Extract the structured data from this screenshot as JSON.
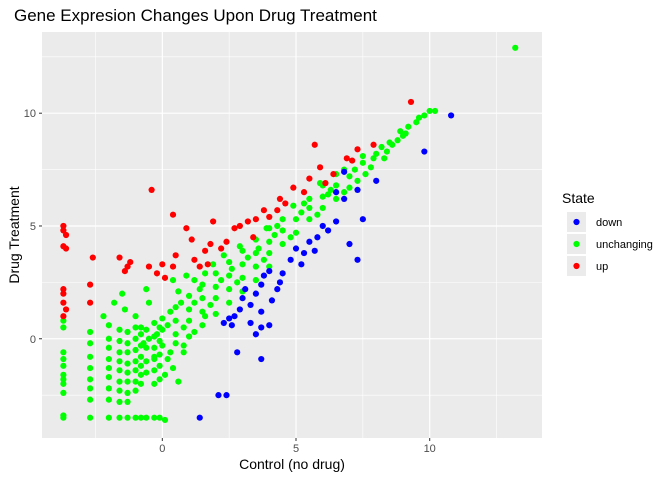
{
  "chart_data": {
    "type": "scatter",
    "title": "Gene Expresion Changes Upon Drug Treatment",
    "xlabel": "Control (no drug)",
    "ylabel": "Drug Treatment",
    "xlim": [
      -4.5,
      14.2
    ],
    "ylim": [
      -4.4,
      13.6
    ],
    "x_ticks": [
      0,
      5,
      10
    ],
    "y_ticks": [
      0,
      5,
      10
    ],
    "grid": true,
    "legend": {
      "title": "State",
      "placement": "right",
      "entries": [
        {
          "label": "down",
          "color": "#0000ff"
        },
        {
          "label": "unchanging",
          "color": "#00ff00"
        },
        {
          "label": "up",
          "color": "#ff0000"
        }
      ]
    },
    "series": [
      {
        "name": "unchanging",
        "color": "#00ff00",
        "points": [
          [
            13.2,
            12.9
          ],
          [
            10.2,
            10.1
          ],
          [
            10.0,
            10.1
          ],
          [
            9.8,
            9.9
          ],
          [
            9.5,
            9.6
          ],
          [
            9.2,
            9.4
          ],
          [
            9.0,
            9.0
          ],
          [
            8.5,
            8.7
          ],
          [
            8.0,
            8.2
          ],
          [
            7.5,
            7.8
          ],
          [
            7.0,
            7.2
          ],
          [
            6.5,
            6.8
          ],
          [
            6.0,
            6.3
          ],
          [
            5.5,
            5.8
          ],
          [
            5.0,
            5.3
          ],
          [
            4.5,
            4.8
          ],
          [
            4.0,
            4.3
          ],
          [
            3.5,
            3.8
          ],
          [
            3.0,
            3.3
          ],
          [
            2.5,
            2.8
          ],
          [
            2.0,
            2.3
          ],
          [
            1.5,
            1.8
          ],
          [
            1.0,
            1.3
          ],
          [
            0.5,
            0.8
          ],
          [
            0.0,
            0.4
          ],
          [
            8.2,
            8.5
          ],
          [
            7.8,
            7.6
          ],
          [
            7.2,
            7.5
          ],
          [
            6.8,
            6.5
          ],
          [
            6.2,
            6.4
          ],
          [
            5.8,
            5.5
          ],
          [
            5.2,
            5.6
          ],
          [
            4.8,
            4.5
          ],
          [
            4.2,
            4.6
          ],
          [
            3.8,
            3.5
          ],
          [
            3.2,
            3.6
          ],
          [
            2.8,
            2.5
          ],
          [
            2.2,
            2.6
          ],
          [
            1.8,
            1.5
          ],
          [
            1.2,
            1.6
          ],
          [
            0.8,
            0.5
          ],
          [
            0.2,
            0.6
          ],
          [
            7.0,
            6.7
          ],
          [
            6.5,
            6.2
          ],
          [
            6.0,
            5.8
          ],
          [
            5.5,
            5.3
          ],
          [
            5.0,
            4.7
          ],
          [
            4.5,
            4.2
          ],
          [
            4.0,
            3.8
          ],
          [
            3.5,
            3.2
          ],
          [
            3.0,
            2.7
          ],
          [
            2.5,
            2.2
          ],
          [
            2.0,
            1.8
          ],
          [
            1.5,
            1.2
          ],
          [
            1.0,
            0.8
          ],
          [
            0.5,
            0.2
          ],
          [
            3.0,
            3.9
          ],
          [
            2.5,
            3.4
          ],
          [
            2.0,
            2.9
          ],
          [
            1.5,
            2.4
          ],
          [
            1.0,
            1.9
          ],
          [
            0.5,
            1.4
          ],
          [
            0.0,
            0.9
          ],
          [
            4.5,
            5.3
          ],
          [
            4.0,
            4.9
          ],
          [
            3.5,
            4.4
          ],
          [
            5.5,
            6.2
          ],
          [
            6.0,
            6.8
          ],
          [
            6.5,
            7.3
          ],
          [
            7.5,
            8.1
          ],
          [
            4.0,
            3.2
          ],
          [
            3.5,
            2.6
          ],
          [
            3.0,
            2.1
          ],
          [
            2.5,
            1.6
          ],
          [
            2.0,
            1.1
          ],
          [
            1.5,
            0.6
          ],
          [
            1.0,
            0.1
          ],
          [
            0.5,
            -0.2
          ],
          [
            0.0,
            -0.3
          ],
          [
            -0.2,
            0.2
          ],
          [
            -0.5,
            0.0
          ],
          [
            -0.8,
            0.5
          ],
          [
            -1.0,
            1.0
          ],
          [
            -0.7,
            -0.2
          ],
          [
            -0.3,
            -0.8
          ],
          [
            0.3,
            -0.6
          ],
          [
            0.8,
            -0.3
          ],
          [
            1.2,
            0.3
          ],
          [
            -1.4,
            1.3
          ],
          [
            -1.8,
            1.6
          ],
          [
            -2.2,
            1.0
          ],
          [
            -1.5,
            2.0
          ],
          [
            -0.5,
            1.6
          ],
          [
            0.6,
            2.1
          ],
          [
            1.6,
            2.9
          ],
          [
            2.3,
            3.7
          ],
          [
            1.9,
            3.3
          ],
          [
            -3.7,
            0.8
          ],
          [
            -3.7,
            0.5
          ],
          [
            -3.7,
            -0.6
          ],
          [
            -3.7,
            -0.9
          ],
          [
            -3.7,
            -1.2
          ],
          [
            -3.7,
            -1.6
          ],
          [
            -3.7,
            -2.0
          ],
          [
            -3.7,
            -2.4
          ],
          [
            -3.7,
            -3.4
          ],
          [
            -3.7,
            -3.5
          ],
          [
            -3.7,
            -1.8
          ],
          [
            -2.7,
            0.3
          ],
          [
            -2.7,
            -0.2
          ],
          [
            -2.7,
            -0.8
          ],
          [
            -2.7,
            -1.3
          ],
          [
            -2.7,
            -1.8
          ],
          [
            -2.7,
            -2.2
          ],
          [
            -2.7,
            -2.7
          ],
          [
            -2.7,
            -3.5
          ],
          [
            -2.0,
            0.6
          ],
          [
            -2.0,
            0.0
          ],
          [
            -2.0,
            -0.4
          ],
          [
            -2.0,
            -0.9
          ],
          [
            -2.0,
            -1.3
          ],
          [
            -2.0,
            -1.7
          ],
          [
            -2.0,
            -2.2
          ],
          [
            -2.0,
            -2.7
          ],
          [
            -2.0,
            -3.5
          ],
          [
            -1.6,
            0.4
          ],
          [
            -1.6,
            -0.1
          ],
          [
            -1.6,
            -0.6
          ],
          [
            -1.6,
            -1.0
          ],
          [
            -1.6,
            -1.4
          ],
          [
            -1.6,
            -1.9
          ],
          [
            -1.6,
            -2.3
          ],
          [
            -1.6,
            -2.8
          ],
          [
            -1.6,
            -3.5
          ],
          [
            -1.3,
            0.3
          ],
          [
            -1.3,
            -0.2
          ],
          [
            -1.3,
            -0.6
          ],
          [
            -1.3,
            -1.1
          ],
          [
            -1.3,
            -1.5
          ],
          [
            -1.3,
            -1.9
          ],
          [
            -1.3,
            -2.4
          ],
          [
            -1.3,
            -2.8
          ],
          [
            -1.3,
            -3.5
          ],
          [
            -1.0,
            0.5
          ],
          [
            -1.0,
            0.0
          ],
          [
            -1.0,
            -0.5
          ],
          [
            -1.0,
            -1.0
          ],
          [
            -1.0,
            -1.4
          ],
          [
            -1.0,
            -1.9
          ],
          [
            -1.0,
            -2.3
          ],
          [
            -1.0,
            -3.5
          ],
          [
            -0.8,
            0.2
          ],
          [
            -0.8,
            -0.3
          ],
          [
            -0.8,
            -0.8
          ],
          [
            -0.8,
            -1.2
          ],
          [
            -0.8,
            -1.6
          ],
          [
            -0.8,
            -2.0
          ],
          [
            -0.8,
            -3.5
          ],
          [
            -0.6,
            0.4
          ],
          [
            -0.6,
            -0.4
          ],
          [
            -0.6,
            -1.0
          ],
          [
            -0.6,
            -1.5
          ],
          [
            -0.6,
            -3.5
          ],
          [
            -0.3,
            0.7
          ],
          [
            -0.3,
            0.1
          ],
          [
            -0.3,
            -0.4
          ],
          [
            -0.3,
            -0.9
          ],
          [
            -0.3,
            -1.4
          ],
          [
            -0.3,
            -2.0
          ],
          [
            -0.3,
            -3.5
          ],
          [
            -0.1,
            0.5
          ],
          [
            -0.1,
            -0.1
          ],
          [
            -0.1,
            -0.7
          ],
          [
            -0.1,
            -1.2
          ],
          [
            -0.1,
            -1.8
          ],
          [
            -0.1,
            -3.5
          ],
          [
            0.1,
            -3.6
          ],
          [
            0.1,
            -1.6
          ],
          [
            0.2,
            -0.9
          ],
          [
            0.4,
            -1.3
          ],
          [
            0.6,
            -1.9
          ],
          [
            0.8,
            -0.6
          ],
          [
            0.4,
            2.6
          ],
          [
            -0.6,
            2.2
          ],
          [
            1.2,
            2.6
          ],
          [
            0.9,
            2.8
          ],
          [
            1.6,
            1.0
          ],
          [
            2.6,
            3.1
          ],
          [
            3.6,
            4.0
          ],
          [
            4.3,
            5.0
          ],
          [
            5.3,
            6.0
          ],
          [
            6.3,
            6.6
          ],
          [
            6.8,
            7.5
          ],
          [
            7.3,
            7.0
          ],
          [
            7.6,
            7.3
          ],
          [
            7.9,
            8.0
          ],
          [
            8.3,
            8.0
          ],
          [
            8.6,
            8.6
          ],
          [
            8.8,
            8.8
          ],
          [
            9.6,
            9.8
          ],
          [
            9.1,
            9.1
          ],
          [
            8.9,
            9.2
          ],
          [
            8.4,
            8.3
          ],
          [
            5.9,
            6.9
          ],
          [
            4.9,
            5.9
          ],
          [
            3.9,
            4.9
          ],
          [
            2.9,
            4.1
          ],
          [
            1.4,
            2.2
          ],
          [
            0.7,
            1.6
          ],
          [
            0.3,
            1.2
          ]
        ]
      },
      {
        "name": "down",
        "color": "#0000ff",
        "points": [
          [
            10.8,
            9.9
          ],
          [
            9.8,
            8.3
          ],
          [
            8.0,
            7.0
          ],
          [
            7.5,
            5.3
          ],
          [
            7.3,
            3.5
          ],
          [
            7.0,
            4.2
          ],
          [
            6.5,
            5.2
          ],
          [
            6.8,
            6.2
          ],
          [
            6.5,
            6.5
          ],
          [
            6.2,
            4.8
          ],
          [
            6.0,
            5.0
          ],
          [
            5.8,
            4.5
          ],
          [
            5.5,
            4.3
          ],
          [
            5.3,
            3.8
          ],
          [
            5.2,
            3.3
          ],
          [
            5.0,
            4.0
          ],
          [
            4.8,
            3.5
          ],
          [
            4.5,
            2.9
          ],
          [
            4.4,
            2.5
          ],
          [
            4.3,
            2.2
          ],
          [
            4.0,
            3.0
          ],
          [
            3.8,
            2.8
          ],
          [
            3.7,
            2.4
          ],
          [
            3.5,
            2.0
          ],
          [
            3.7,
            1.2
          ],
          [
            3.3,
            1.5
          ],
          [
            3.0,
            1.8
          ],
          [
            2.9,
            1.3
          ],
          [
            2.7,
            1.0
          ],
          [
            2.5,
            0.9
          ],
          [
            3.3,
            0.7
          ],
          [
            3.5,
            0.2
          ],
          [
            3.7,
            0.5
          ],
          [
            4.0,
            0.6
          ],
          [
            2.6,
            0.6
          ],
          [
            3.7,
            -0.9
          ],
          [
            2.8,
            -0.6
          ],
          [
            2.3,
            0.7
          ],
          [
            1.4,
            -3.5
          ],
          [
            2.1,
            -2.5
          ],
          [
            2.4,
            -2.5
          ],
          [
            6.8,
            7.4
          ],
          [
            7.3,
            6.6
          ],
          [
            5.7,
            3.9
          ],
          [
            4.1,
            1.7
          ],
          [
            3.1,
            2.2
          ]
        ]
      },
      {
        "name": "up",
        "color": "#ff0000",
        "points": [
          [
            9.3,
            10.5
          ],
          [
            7.3,
            8.4
          ],
          [
            5.7,
            8.6
          ],
          [
            4.9,
            6.7
          ],
          [
            5.5,
            7.1
          ],
          [
            5.3,
            6.5
          ],
          [
            4.4,
            6.2
          ],
          [
            4.3,
            5.7
          ],
          [
            4.6,
            6.0
          ],
          [
            3.8,
            5.7
          ],
          [
            3.5,
            5.3
          ],
          [
            3.2,
            5.2
          ],
          [
            2.9,
            5.0
          ],
          [
            2.7,
            4.9
          ],
          [
            3.4,
            4.5
          ],
          [
            2.4,
            4.3
          ],
          [
            2.2,
            4.0
          ],
          [
            1.8,
            4.2
          ],
          [
            1.6,
            3.9
          ],
          [
            1.7,
            3.3
          ],
          [
            1.4,
            3.2
          ],
          [
            1.2,
            3.5
          ],
          [
            0.9,
            4.9
          ],
          [
            1.1,
            4.4
          ],
          [
            1.9,
            5.2
          ],
          [
            -0.4,
            6.6
          ],
          [
            0.4,
            5.5
          ],
          [
            0.5,
            3.7
          ],
          [
            0.0,
            3.3
          ],
          [
            0.4,
            3.2
          ],
          [
            -0.5,
            3.2
          ],
          [
            -1.2,
            3.4
          ],
          [
            -1.3,
            3.2
          ],
          [
            -1.6,
            3.6
          ],
          [
            -1.4,
            3.0
          ],
          [
            -2.6,
            3.6
          ],
          [
            -2.7,
            2.4
          ],
          [
            -2.7,
            1.6
          ],
          [
            -0.2,
            2.9
          ],
          [
            0.1,
            2.7
          ],
          [
            -3.7,
            5.0
          ],
          [
            -3.6,
            4.6
          ],
          [
            -3.7,
            4.1
          ],
          [
            -3.6,
            4.0
          ],
          [
            -3.7,
            2.2
          ],
          [
            -3.7,
            2.0
          ],
          [
            -3.7,
            1.6
          ],
          [
            -3.6,
            1.3
          ],
          [
            -3.7,
            1.0
          ],
          [
            -3.7,
            4.8
          ],
          [
            6.4,
            7.3
          ],
          [
            7.1,
            7.9
          ],
          [
            6.9,
            8.0
          ],
          [
            7.9,
            8.6
          ],
          [
            6.1,
            6.9
          ],
          [
            4.0,
            5.4
          ],
          [
            5.9,
            7.6
          ]
        ]
      }
    ]
  }
}
